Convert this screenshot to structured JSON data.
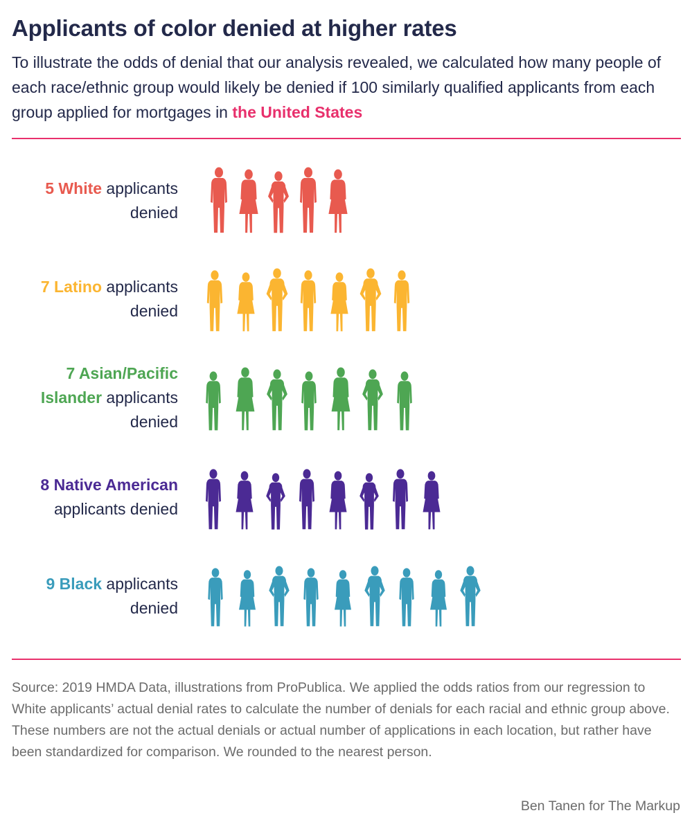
{
  "header": {
    "title": "Applicants of color denied at higher rates",
    "subtitle_main": "To illustrate the odds of denial that our analysis revealed, we calculated how many people of each race/ethnic group would likely be denied if 100 similarly qualified applicants from each group applied for mortgages in ",
    "subtitle_highlight": "the United States"
  },
  "chart_data": {
    "type": "pictogram",
    "unit": "applicants denied per 100 similarly qualified applicants",
    "series": [
      {
        "name": "White",
        "value": 5,
        "count_label": "5 White",
        "rest_label": " applicants denied",
        "color": "#e85a4f"
      },
      {
        "name": "Latino",
        "value": 7,
        "count_label": "7 Latino",
        "rest_label": " applicants denied",
        "color": "#fbb531"
      },
      {
        "name": "Asian/Pacific Islander",
        "value": 7,
        "count_label": "7 Asian/Pacific Islander",
        "rest_label": " applicants denied",
        "color": "#4ea653"
      },
      {
        "name": "Native American",
        "value": 8,
        "count_label": "8 Native American",
        "rest_label": " applicants denied",
        "color": "#4b2a94"
      },
      {
        "name": "Black",
        "value": 9,
        "count_label": "9 Black",
        "rest_label": " applicants denied",
        "color": "#3a9cbb"
      }
    ]
  },
  "footer": {
    "source": "Source: 2019 HMDA Data, illustrations from ProPublica. We applied the odds ratios from our regression to White applicants’ actual denial rates to calculate the number of denials for each racial and ethnic group above. These numbers are not the actual denials or actual number of applications in each location, but rather have been standardized for comparison. We rounded to the nearest person.",
    "credit": "Ben Tanen for The Markup"
  },
  "colors": {
    "text": "#23294a",
    "accent": "#e8306c",
    "muted": "#6b6b6b"
  }
}
